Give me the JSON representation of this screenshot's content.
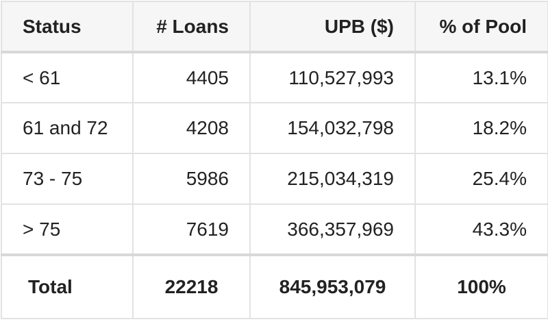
{
  "table": {
    "headers": [
      "Status",
      "# Loans",
      "UPB ($)",
      "% of Pool"
    ],
    "rows": [
      [
        "< 61",
        "4405",
        "110,527,993",
        "13.1%"
      ],
      [
        "61 and 72",
        "4208",
        "154,032,798",
        "18.2%"
      ],
      [
        "73 - 75",
        "5986",
        "215,034,319",
        "25.4%"
      ],
      [
        "> 75",
        "7619",
        "366,357,969",
        "43.3%"
      ]
    ],
    "total": [
      "Total",
      "22218",
      "845,953,079",
      "100%"
    ]
  }
}
